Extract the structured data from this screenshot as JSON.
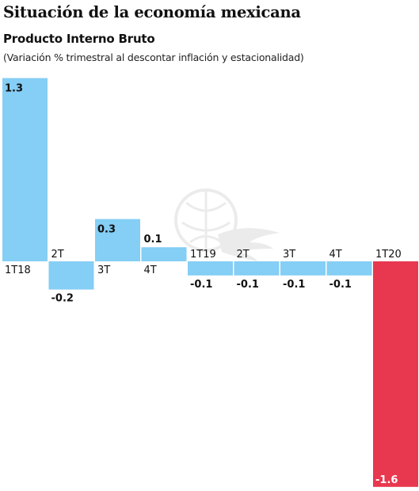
{
  "title": "Situación de la economía mexicana",
  "subtitle": "Producto Interno Bruto",
  "note": "(Variación % trimestral al descontar inflación y estacionalidad)",
  "colors": {
    "positive": "#85cef5",
    "negative": "#e8384f",
    "text": "#111111"
  },
  "chart_data": {
    "type": "bar",
    "categories": [
      "1T18",
      "2T",
      "3T",
      "4T",
      "1T19",
      "2T",
      "3T",
      "4T",
      "1T20"
    ],
    "values": [
      1.3,
      -0.2,
      0.3,
      0.1,
      -0.1,
      -0.1,
      -0.1,
      -0.1,
      -1.6
    ],
    "labels": [
      "1.3",
      "-0.2",
      "0.3",
      "0.1",
      "-0.1",
      "-0.1",
      "-0.1",
      "-0.1",
      "-1.6"
    ],
    "highlight_index": 8,
    "ylim": [
      -1.6,
      1.3
    ],
    "grid": false,
    "legend": "none"
  }
}
